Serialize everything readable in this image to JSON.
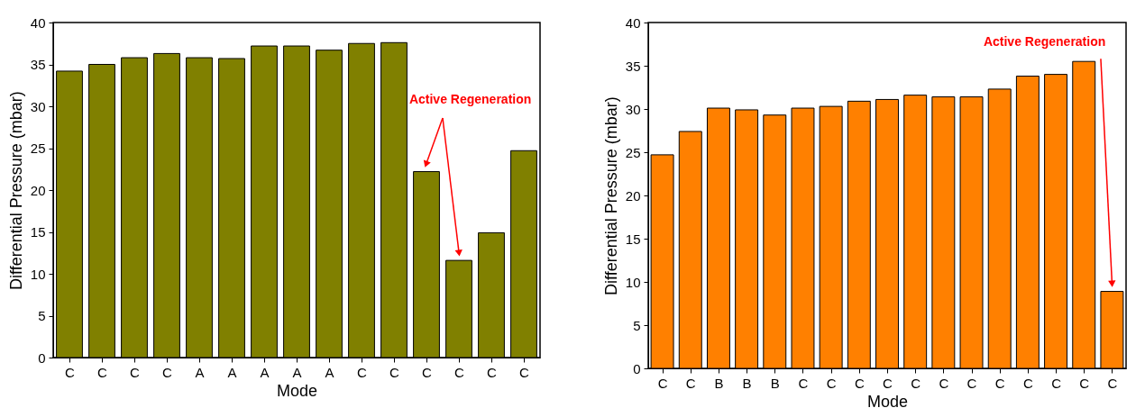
{
  "chart_data": [
    {
      "type": "bar",
      "categories": [
        "C",
        "C",
        "C",
        "C",
        "A",
        "A",
        "A",
        "A",
        "A",
        "C",
        "C",
        "C",
        "C",
        "C",
        "C"
      ],
      "values": [
        34.2,
        35.0,
        35.8,
        36.3,
        35.8,
        35.7,
        37.2,
        37.2,
        36.7,
        37.5,
        37.6,
        22.2,
        11.6,
        14.9,
        24.7
      ],
      "color": "#808000",
      "xlabel": "Mode",
      "ylabel": "Differential Pressure (mbar)",
      "ylim": [
        0,
        40
      ],
      "yticks": [
        0,
        5,
        10,
        15,
        20,
        25,
        30,
        35,
        40
      ],
      "annotations": [
        "Active Regeneration"
      ]
    },
    {
      "type": "bar",
      "categories": [
        "C",
        "C",
        "B",
        "B",
        "B",
        "C",
        "C",
        "C",
        "C",
        "C",
        "C",
        "C",
        "C",
        "C",
        "C",
        "C",
        "C"
      ],
      "values": [
        24.7,
        27.4,
        30.1,
        29.9,
        29.3,
        30.1,
        30.3,
        30.9,
        31.1,
        31.6,
        31.4,
        31.4,
        32.3,
        33.8,
        34.0,
        35.5,
        8.9
      ],
      "color": "#ff8000",
      "xlabel": "Mode",
      "ylabel": "Differential Pressure (mbar)",
      "ylim": [
        0,
        40
      ],
      "yticks": [
        0,
        5,
        10,
        15,
        20,
        25,
        30,
        35,
        40
      ],
      "annotations": [
        "Active Regeneration"
      ]
    }
  ]
}
